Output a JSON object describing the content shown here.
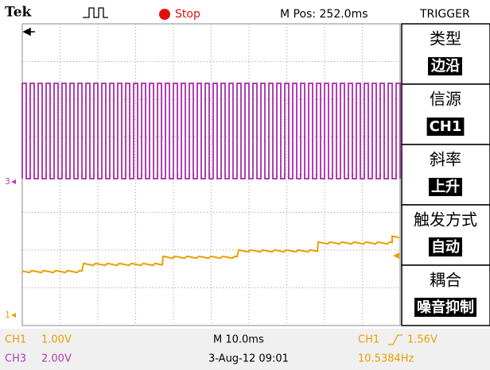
{
  "header": {
    "brand": "Tek",
    "state": "Stop",
    "position": "M Pos: 252.0ms",
    "menu_title": "TRIGGER"
  },
  "markers": {
    "ch3": "3",
    "ch1": "1"
  },
  "menu": [
    {
      "label": "类型",
      "value": "边沿"
    },
    {
      "label": "信源",
      "value": "CH1"
    },
    {
      "label": "斜率",
      "value": "上升"
    },
    {
      "label": "触发方式",
      "value": "自动"
    },
    {
      "label": "耦合",
      "value": "噪音抑制"
    }
  ],
  "footer": {
    "ch1_name": "CH1",
    "ch1_scale": "1.00V",
    "ch3_name": "CH3",
    "ch3_scale": "2.00V",
    "timebase": "M 10.0ms",
    "datetime": "3-Aug-12 09:01",
    "trigger_source": "CH1",
    "trigger_level": "1.56V",
    "frequency": "10.5384Hz"
  }
}
